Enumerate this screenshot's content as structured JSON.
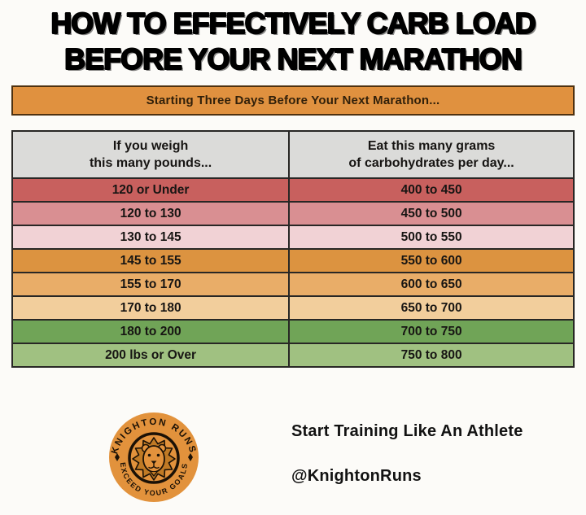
{
  "title": {
    "line1": "HOW TO EFFECTIVELY CARB LOAD",
    "line2": "BEFORE YOUR NEXT MARATHON"
  },
  "banner": {
    "text": "Starting Three Days Before Your Next Marathon...",
    "bg_color": "#E0913F"
  },
  "table": {
    "header": {
      "weight_col_line1": "If you weigh",
      "weight_col_line2": "this many pounds...",
      "carbs_col_line1": "Eat this many grams",
      "carbs_col_line2": "of carbohydrates per day...",
      "bg_color": "#DBDBD9"
    }
  },
  "chart_data": {
    "type": "table",
    "title": "How To Effectively Carb Load Before Your Next Marathon",
    "subtitle": "Starting Three Days Before Your Next Marathon...",
    "columns": [
      "If you weigh this many pounds...",
      "Eat this many grams of carbohydrates per day..."
    ],
    "rows": [
      [
        "120 or Under",
        "400 to 450"
      ],
      [
        "120 to 130",
        "450 to 500"
      ],
      [
        "130 to 145",
        "500 to 550"
      ],
      [
        "145 to 155",
        "550 to 600"
      ],
      [
        "155 to 170",
        "600 to 650"
      ],
      [
        "170 to 180",
        "650 to 700"
      ],
      [
        "180 to 200",
        "700 to 750"
      ],
      [
        "200 lbs or Over",
        "750 to 800"
      ]
    ],
    "row_colors": [
      "#C8605E",
      "#D98F92",
      "#F1D2D5",
      "#DC9340",
      "#E9AD68",
      "#F2CE9C",
      "#70A457",
      "#A0C181"
    ],
    "legend_position": "none",
    "grid": "solid black cell borders"
  },
  "footer": {
    "logo": {
      "arc_top": "KNIGHTON RUNS",
      "arc_bottom": "EXCEED YOUR GOALS",
      "bg_color": "#E2923C"
    },
    "tagline": "Start Training Like An Athlete",
    "handle": "@KnightonRuns"
  }
}
